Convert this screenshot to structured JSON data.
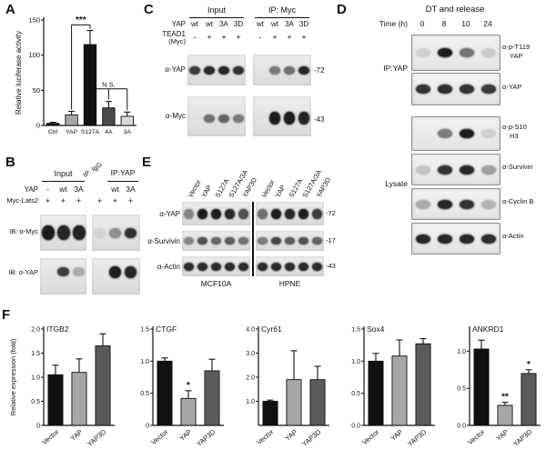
{
  "colors": {
    "band": "#131313",
    "blot_background": "#e6e6e6",
    "axis": "#111111",
    "bar_black": "#111111",
    "bar_gray": "#a6a6a6",
    "bar_dark_gray": "#5a5a5a",
    "bar_light_gray": "#d8d8d8"
  },
  "panels": {
    "a": {
      "label": "A"
    },
    "b": {
      "label": "B",
      "group_headers": [
        "Input",
        "IP: IgG",
        "IP:YAP"
      ],
      "row_yap_label": "YAP",
      "row_yap_values": [
        "-",
        "wt",
        "3A",
        "",
        "wt",
        "3A"
      ],
      "row_lats_label": "Myc-Lats2",
      "row_lats_values": [
        "+",
        "+",
        "+",
        "+",
        "+",
        "+"
      ],
      "blots": [
        {
          "label": "IB: α-Myc",
          "bands_input": [
            0.95,
            0.9,
            0.92
          ],
          "bands_ip": [
            0.08,
            0.4,
            0.85
          ]
        },
        {
          "label": "IB: α-YAP",
          "bands_input": [
            0,
            0.8,
            0.28
          ],
          "bands_ip": [
            0,
            0.95,
            0.9
          ]
        }
      ]
    },
    "c": {
      "label": "C",
      "group_headers": [
        "Input",
        "IP: Myc"
      ],
      "row_yap_label": "YAP",
      "row_yap_values": [
        "wt",
        "wt",
        "3A",
        "3D",
        "wt",
        "wt",
        "3A",
        "3D"
      ],
      "row_tead_label_line1": "TEAD1",
      "row_tead_label_line2": "(Myc)",
      "row_tead_values": [
        "-",
        "+",
        "+",
        "+",
        "-",
        "+",
        "+",
        "+"
      ],
      "blots": [
        {
          "label": "α-YAP",
          "marker": "-72",
          "bands": [
            0.8,
            0.9,
            0.9,
            0.85,
            0,
            0.5,
            0.55,
            0.9
          ]
        },
        {
          "label": "α-Myc",
          "marker": "-43",
          "bands": [
            0,
            0.55,
            0.6,
            0.5,
            0,
            0.95,
            0.95,
            0.92
          ]
        }
      ]
    },
    "d": {
      "label": "D",
      "title": "DT and release",
      "time_label": "Time (h)",
      "time_values": [
        "0",
        "8",
        "10",
        "24"
      ],
      "group_ip_label": "IP:YAP",
      "group_lysate_label": "Lysate",
      "blots": [
        {
          "label_lines": [
            "α-p-T119",
            "YAP"
          ],
          "bands": [
            0.12,
            0.95,
            0.55,
            0.15
          ]
        },
        {
          "label_lines": [
            "α-YAP"
          ],
          "bands": [
            0.85,
            0.88,
            0.85,
            0.82
          ]
        },
        {
          "label_lines": [
            "α-p-S10",
            "H3"
          ],
          "bands": [
            0,
            0.5,
            0.95,
            0.12
          ]
        },
        {
          "label_lines": [
            "α-Survivin"
          ],
          "bands": [
            0.18,
            0.85,
            0.9,
            0.35
          ]
        },
        {
          "label_lines": [
            "α-Cyclin B"
          ],
          "bands": [
            0.3,
            0.9,
            0.85,
            0.25
          ]
        },
        {
          "label_lines": [
            "α-Actin"
          ],
          "bands": [
            0.9,
            0.9,
            0.9,
            0.88
          ]
        }
      ]
    },
    "e": {
      "label": "E",
      "lane_labels": [
        "Vector",
        "YAP",
        "S127A",
        "S127A/3A",
        "YAP3D",
        "Vector",
        "YAP",
        "S127A",
        "S127A/3A",
        "YAP3D"
      ],
      "group_labels": [
        "MCF10A",
        "HPNE"
      ],
      "blots": [
        {
          "label": "α-YAP",
          "marker": "-72",
          "bands": [
            0.45,
            0.95,
            0.95,
            0.9,
            0.7,
            0.55,
            0.95,
            0.9,
            0.95,
            0.8
          ]
        },
        {
          "label": "α-Survivin",
          "marker": "-17",
          "bands": [
            0.45,
            0.7,
            0.6,
            0.65,
            0.55,
            0.5,
            0.75,
            0.65,
            0.7,
            0.6
          ]
        },
        {
          "label": "α-Actin",
          "marker": "-43",
          "bands": [
            0.88,
            0.88,
            0.88,
            0.88,
            0.88,
            0.88,
            0.88,
            0.88,
            0.88,
            0.88
          ]
        }
      ]
    },
    "f": {
      "label": "F"
    }
  },
  "chart_data": [
    {
      "id": "luciferase",
      "type": "bar",
      "title": "",
      "ylabel": "Relative luciferase activity",
      "categories": [
        "Ctrl",
        "YAP",
        "S127A",
        "4A",
        "3A"
      ],
      "values": [
        3,
        15,
        115,
        25,
        13
      ],
      "errors": [
        1.5,
        5,
        20,
        9,
        6
      ],
      "ylim": [
        0,
        150
      ],
      "ytick_values": [
        0,
        50,
        100,
        150
      ],
      "ytick_labels": [
        "0",
        "50",
        "100",
        "150"
      ],
      "bar_colors": [
        "#111111",
        "#a6a6a6",
        "#111111",
        "#4a4a4a",
        "#d8d8d8"
      ],
      "brackets": [
        {
          "from": 1,
          "to": 2,
          "y": 143,
          "label": "***",
          "legs": [
            1,
            2
          ]
        },
        {
          "from": 2,
          "to": 4,
          "y": 52,
          "label": "N.S.",
          "legs": [
            3,
            4
          ]
        }
      ]
    },
    {
      "id": "ITGB2",
      "type": "bar",
      "title": "ITGB2",
      "ylabel": "Relative expression (fold)",
      "categories": [
        "Vector",
        "YAP",
        "YAP3D"
      ],
      "values": [
        1.05,
        1.1,
        1.65
      ],
      "errors": [
        0.2,
        0.28,
        0.25
      ],
      "stars": [
        "",
        "",
        ""
      ],
      "ylim": [
        0,
        2.0
      ],
      "ytick_values": [
        0,
        0.5,
        1.0,
        1.5,
        2.0
      ],
      "ytick_labels": [
        "0",
        "0.5",
        "1.0",
        "1.5",
        "2.0"
      ],
      "bar_colors": [
        "#111111",
        "#a6a6a6",
        "#5a5a5a"
      ]
    },
    {
      "id": "CTGF",
      "type": "bar",
      "title": "CTGF",
      "categories": [
        "Vector",
        "YAP",
        "YAP3D"
      ],
      "values": [
        1.0,
        0.42,
        0.85
      ],
      "errors": [
        0.05,
        0.12,
        0.18
      ],
      "stars": [
        "",
        "*",
        ""
      ],
      "ylim": [
        0,
        1.5
      ],
      "ytick_values": [
        0,
        0.5,
        1.0,
        1.5
      ],
      "ytick_labels": [
        "0",
        "0.5",
        "1.0",
        "1.5"
      ],
      "bar_colors": [
        "#111111",
        "#a6a6a6",
        "#5a5a5a"
      ]
    },
    {
      "id": "Cyr61",
      "type": "bar",
      "title": "Cyr61",
      "categories": [
        "Vector",
        "YAP",
        "YAP3D"
      ],
      "values": [
        1.0,
        1.9,
        1.9
      ],
      "errors": [
        0.05,
        1.2,
        0.55
      ],
      "stars": [
        "",
        "",
        ""
      ],
      "ylim": [
        0,
        4.0
      ],
      "ytick_values": [
        1.0,
        2.0,
        3.0,
        4.0
      ],
      "ytick_labels": [
        "1.0",
        "2.0",
        "3.0",
        "4.0"
      ],
      "bar_colors": [
        "#111111",
        "#a6a6a6",
        "#5a5a5a"
      ]
    },
    {
      "id": "Sox4",
      "type": "bar",
      "title": "Sox4",
      "categories": [
        "Vector",
        "YAP",
        "YAP3D"
      ],
      "values": [
        1.0,
        1.08,
        1.27
      ],
      "errors": [
        0.12,
        0.25,
        0.08
      ],
      "stars": [
        "",
        "",
        ""
      ],
      "ylim": [
        0,
        1.5
      ],
      "ytick_values": [
        0,
        0.5,
        1.0,
        1.5
      ],
      "ytick_labels": [
        "0.0",
        "0.5",
        "1.0",
        "1.5"
      ],
      "bar_colors": [
        "#111111",
        "#a6a6a6",
        "#5a5a5a"
      ]
    },
    {
      "id": "ANKRD1",
      "type": "bar",
      "title": "ANKRD1",
      "categories": [
        "Vector",
        "YAP",
        "YAP3D"
      ],
      "values": [
        1.03,
        0.27,
        0.7
      ],
      "errors": [
        0.12,
        0.04,
        0.05
      ],
      "stars": [
        "",
        "**",
        "*"
      ],
      "ylim": [
        0,
        1.3
      ],
      "ytick_values": [
        0,
        0.5,
        1.0
      ],
      "ytick_labels": [
        "0.0",
        "0.5",
        "1.0"
      ],
      "bar_colors": [
        "#111111",
        "#a6a6a6",
        "#5a5a5a"
      ]
    }
  ]
}
